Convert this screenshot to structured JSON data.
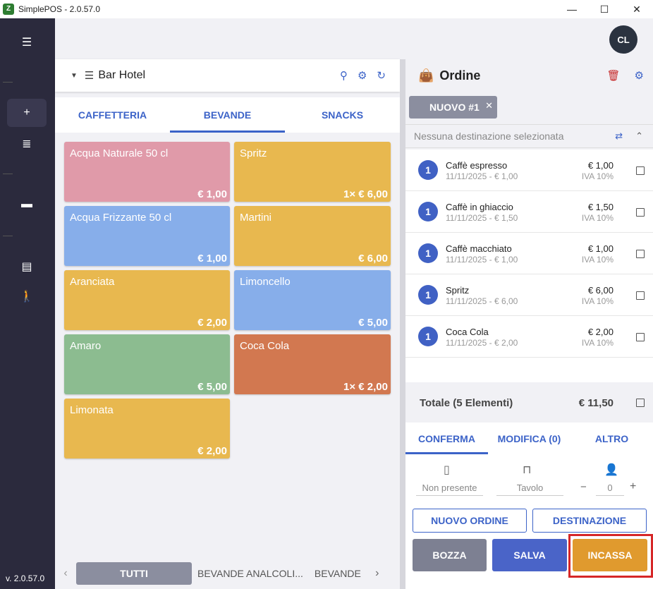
{
  "window": {
    "title": "SimplePOS - 2.0.57.0",
    "app_icon": "Z"
  },
  "sidebar": {
    "version": "v. 2.0.57.0"
  },
  "user": {
    "initials": "CL"
  },
  "menu": {
    "name": "Bar Hotel"
  },
  "category_tabs": [
    "CAFFETTERIA",
    "BEVANDE",
    "SNACKS"
  ],
  "products": [
    {
      "name": "Acqua Naturale 50 cl",
      "price": "€ 1,00",
      "color": "#e09aa9"
    },
    {
      "name": "Spritz",
      "price": "1× € 6,00",
      "color": "#e8b84f"
    },
    {
      "name": "Acqua Frizzante 50 cl",
      "price": "€ 1,00",
      "color": "#87aeea"
    },
    {
      "name": "Martini",
      "price": "€ 6,00",
      "color": "#e8b84f"
    },
    {
      "name": "Aranciata",
      "price": "€ 2,00",
      "color": "#e8b84f"
    },
    {
      "name": "Limoncello",
      "price": "€ 5,00",
      "color": "#87aeea"
    },
    {
      "name": "Amaro",
      "price": "€ 5,00",
      "color": "#8cbc90"
    },
    {
      "name": "Coca Cola",
      "price": "1× € 2,00",
      "color": "#d27850"
    },
    {
      "name": "Limonata",
      "price": "€ 2,00",
      "color": "#e8b84f"
    }
  ],
  "subcategory_tabs": {
    "all": "TUTTI",
    "items": [
      "BEVANDE ANALCOLI...",
      "BEVANDE"
    ]
  },
  "order": {
    "title": "Ordine",
    "chip": "NUOVO #1",
    "destination": "Nessuna destinazione selezionata",
    "items": [
      {
        "qty": "1",
        "name": "Caffè espresso",
        "sub": "11/11/2025 - € 1,00",
        "price": "€ 1,00",
        "vat": "IVA 10%"
      },
      {
        "qty": "1",
        "name": "Caffè in ghiaccio",
        "sub": "11/11/2025 - € 1,50",
        "price": "€ 1,50",
        "vat": "IVA 10%"
      },
      {
        "qty": "1",
        "name": "Caffè macchiato",
        "sub": "11/11/2025 - € 1,00",
        "price": "€ 1,00",
        "vat": "IVA 10%"
      },
      {
        "qty": "1",
        "name": "Spritz",
        "sub": "11/11/2025 - € 6,00",
        "price": "€ 6,00",
        "vat": "IVA 10%"
      },
      {
        "qty": "1",
        "name": "Coca Cola",
        "sub": "11/11/2025 - € 2,00",
        "price": "€ 2,00",
        "vat": "IVA 10%"
      }
    ],
    "total_label": "Totale (5 Elementi)",
    "total_value": "€ 11,50"
  },
  "actions": {
    "tabs": [
      "CONFERMA",
      "MODIFICA (0)",
      "ALTRO"
    ],
    "document_field": "Non presente",
    "table_field": "Tavolo",
    "covers": "0",
    "minus": "−",
    "plus": "+",
    "new_order": "NUOVO ORDINE",
    "destination": "DESTINAZIONE",
    "draft": "BOZZA",
    "save": "SALVA",
    "cash": "INCASSA"
  }
}
